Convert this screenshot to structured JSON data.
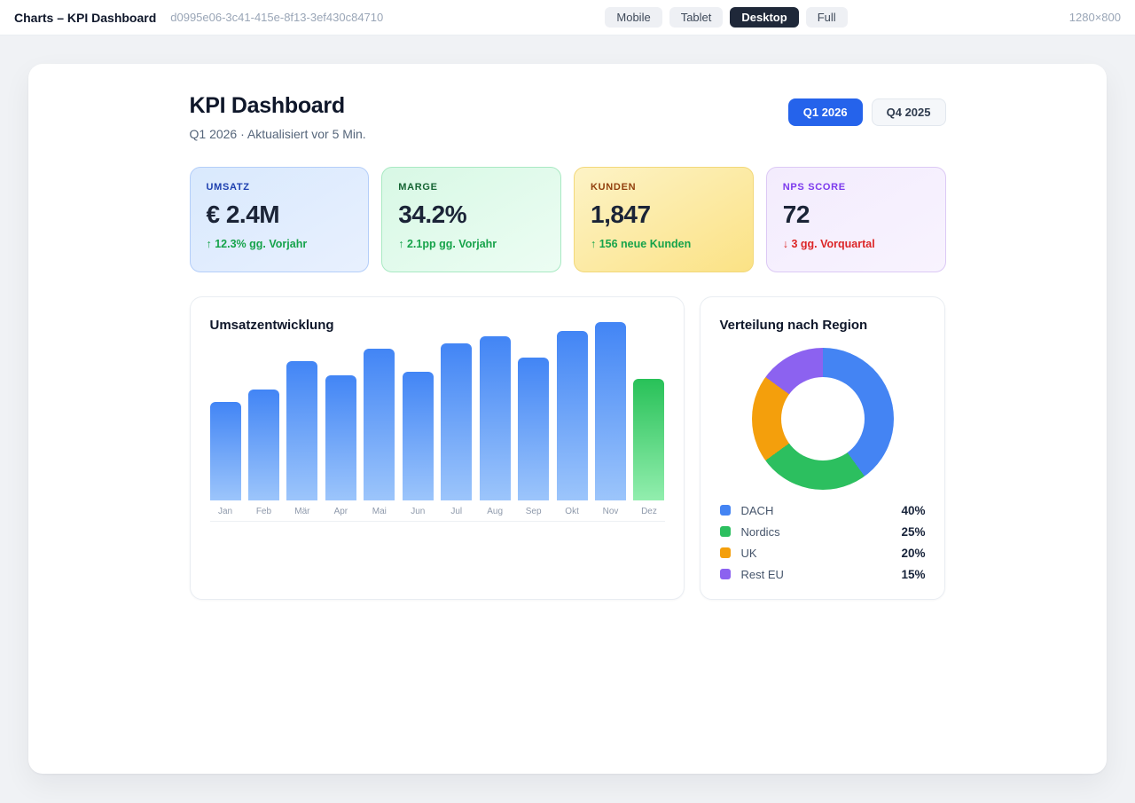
{
  "topbar": {
    "title": "Charts – KPI Dashboard",
    "session_id": "d0995e06-3c41-415e-8f13-3ef430c84710",
    "viewport_buttons": [
      {
        "label": "Mobile",
        "active": false
      },
      {
        "label": "Tablet",
        "active": false
      },
      {
        "label": "Desktop",
        "active": true
      },
      {
        "label": "Full",
        "active": false
      }
    ],
    "dimensions": "1280×800"
  },
  "dashboard": {
    "title": "KPI Dashboard",
    "subtitle": "Q1 2026 · Aktualisiert vor 5 Min.",
    "period_buttons": [
      {
        "label": "Q1 2026",
        "active": true
      },
      {
        "label": "Q4 2025",
        "active": false
      }
    ]
  },
  "kpi_cards": [
    {
      "label": "UMSATZ",
      "value": "€ 2.4M",
      "trend": "↑ 12.3% gg. Vorjahr",
      "trend_direction": "up",
      "scheme": "blue"
    },
    {
      "label": "MARGE",
      "value": "34.2%",
      "trend": "↑ 2.1pp gg. Vorjahr",
      "trend_direction": "up",
      "scheme": "green"
    },
    {
      "label": "KUNDEN",
      "value": "1,847",
      "trend": "↑ 156 neue Kunden",
      "trend_direction": "up",
      "scheme": "yellow"
    },
    {
      "label": "NPS SCORE",
      "value": "72",
      "trend": "↓ 3 gg. Vorquartal",
      "trend_direction": "down",
      "scheme": "purple"
    }
  ],
  "chart_data": [
    {
      "type": "bar",
      "title": "Umsatzentwicklung",
      "categories": [
        "Jan",
        "Feb",
        "Mär",
        "Apr",
        "Mai",
        "Jun",
        "Jul",
        "Aug",
        "Sep",
        "Okt",
        "Nov",
        "Dez"
      ],
      "values": [
        55,
        62,
        78,
        70,
        85,
        72,
        88,
        92,
        80,
        95,
        100,
        68
      ],
      "ylim": [
        0,
        100
      ],
      "grid": false,
      "value_note": "relative bar heights, Nov = 100 (no numeric axis shown)",
      "bar_color_top": "#4285f5",
      "bar_color_bottom": "#9cc5fb",
      "highlight_index": 11,
      "highlight_color_top": "#28c158",
      "highlight_color_bottom": "#92eeae"
    },
    {
      "type": "pie",
      "title": "Verteilung nach Region",
      "categories": [
        "DACH",
        "Nordics",
        "UK",
        "Rest EU"
      ],
      "values": [
        40,
        25,
        20,
        15
      ],
      "value_labels": [
        "40%",
        "25%",
        "20%",
        "15%"
      ],
      "colors": [
        "#4484f3",
        "#2cbf5f",
        "#f49f0c",
        "#8c62f0"
      ],
      "legend_position": "bottom",
      "donut": true
    }
  ]
}
